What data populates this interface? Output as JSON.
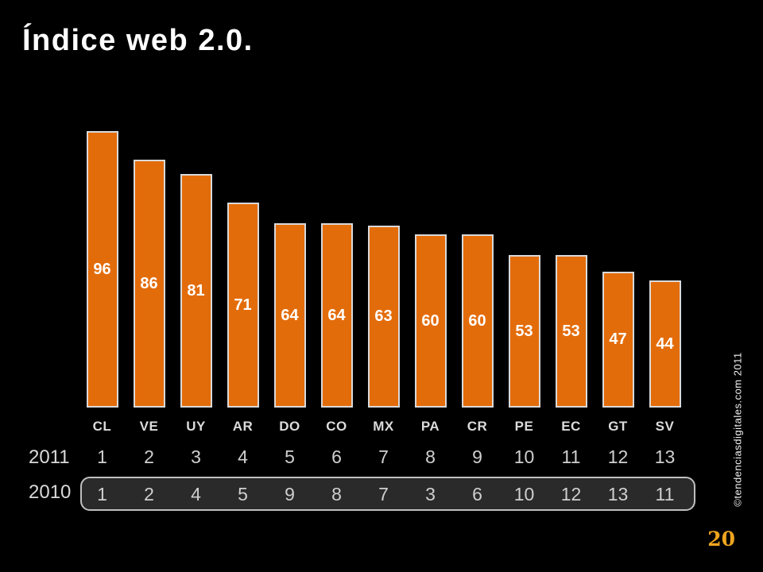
{
  "slide": {
    "title": "Índice web 2.0.",
    "copyright": "©tendenciasdigitales.com 2011",
    "page_number": "20"
  },
  "colors": {
    "background": "#000000",
    "bar_fill": "#E36C0A",
    "bar_border": "#D9D9D9",
    "bar_value_text": "#FFFFFF",
    "axis_text": "#D9D9D9",
    "rank_box_fill": "#2A2A2A",
    "rank_box_border": "#BFBFBF",
    "page_number_color": "#EFA51F"
  },
  "chart_data": {
    "type": "bar",
    "title": "Índice web 2.0.",
    "categories": [
      "CL",
      "VE",
      "UY",
      "AR",
      "DO",
      "CO",
      "MX",
      "PA",
      "CR",
      "PE",
      "EC",
      "GT",
      "SV"
    ],
    "values": [
      96,
      86,
      81,
      71,
      64,
      64,
      63,
      60,
      60,
      53,
      53,
      47,
      44
    ],
    "xlabel": "",
    "ylabel": "",
    "ylim": [
      0,
      100
    ],
    "grid": false,
    "legend": false,
    "bar_labels_position": "center-inside",
    "rank_rows": [
      {
        "label": "2011",
        "values": [
          1,
          2,
          3,
          4,
          5,
          6,
          7,
          8,
          9,
          10,
          11,
          12,
          13
        ],
        "boxed": false
      },
      {
        "label": "2010",
        "values": [
          1,
          2,
          4,
          5,
          9,
          8,
          7,
          3,
          6,
          10,
          12,
          13,
          11
        ],
        "boxed": true
      }
    ]
  }
}
